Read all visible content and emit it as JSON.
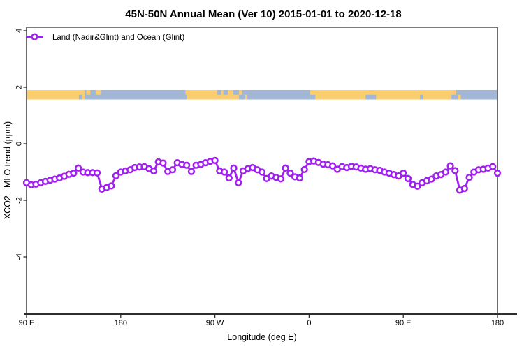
{
  "colors": {
    "line": "#A020F0",
    "marker_fill": "#ffffff",
    "land": "#FACD6E",
    "ocean": "#A2B7D6",
    "frame": "#2e2e2e",
    "background": "#ffffff"
  },
  "chart_data": {
    "type": "line",
    "title": "45N-50N Annual Mean (Ver 10)   2015-01-01 to 2020-12-18",
    "xlabel": "Longitude (deg E)",
    "ylabel": "XCO2 - MLO trend (ppm)",
    "grid": false,
    "legend_position": "top-left",
    "xlim": [
      90,
      540
    ],
    "ylim": [
      -6.0,
      4.15
    ],
    "x_tick_lons": [
      90,
      180,
      270,
      360,
      450,
      540
    ],
    "x_tick_labels": [
      "90 E",
      "180",
      "90 W",
      "0",
      "90 E",
      "180"
    ],
    "y_ticks": [
      4,
      2,
      0,
      -2,
      -4
    ],
    "y_tick_labels": [
      "4",
      "2",
      "0",
      "-2",
      "-4"
    ],
    "x_start": 90,
    "x_step": 4.5,
    "series": [
      {
        "name": "Land (Nadir&Glint) and Ocean (Glint)",
        "marker": "open-circle",
        "values": [
          -1.38,
          -1.45,
          -1.43,
          -1.38,
          -1.33,
          -1.29,
          -1.25,
          -1.21,
          -1.15,
          -1.08,
          -1.04,
          -0.86,
          -1.0,
          -1.02,
          -1.02,
          -1.03,
          -1.6,
          -1.55,
          -1.49,
          -1.13,
          -1.0,
          -0.96,
          -0.92,
          -0.84,
          -0.82,
          -0.81,
          -0.88,
          -0.96,
          -0.64,
          -0.68,
          -0.98,
          -0.92,
          -0.67,
          -0.73,
          -0.76,
          -0.98,
          -0.76,
          -0.73,
          -0.67,
          -0.62,
          -0.59,
          -0.96,
          -1.0,
          -1.21,
          -0.86,
          -1.38,
          -0.96,
          -0.88,
          -0.84,
          -0.92,
          -1.0,
          -1.23,
          -1.14,
          -1.19,
          -1.24,
          -0.86,
          -1.04,
          -1.17,
          -1.21,
          -0.91,
          -0.63,
          -0.61,
          -0.66,
          -0.72,
          -0.74,
          -0.78,
          -0.9,
          -0.81,
          -0.84,
          -0.8,
          -0.82,
          -0.86,
          -0.9,
          -0.88,
          -0.92,
          -0.94,
          -1.0,
          -1.04,
          -1.09,
          -1.14,
          -1.04,
          -1.23,
          -1.44,
          -1.5,
          -1.38,
          -1.31,
          -1.25,
          -1.14,
          -1.09,
          -1.0,
          -0.78,
          -0.95,
          -1.64,
          -1.58,
          -1.19,
          -1.0,
          -0.92,
          -0.9,
          -0.86,
          -0.81,
          -1.04
        ]
      }
    ]
  },
  "map_strip": {
    "description": "land/ocean strip for 45N-50N latitude band",
    "value_span": [
      1.57,
      1.9
    ],
    "bands": [
      {
        "from": 90,
        "to": 145.5,
        "kind": "land"
      },
      {
        "from": 145.5,
        "to": 242,
        "kind": "ocean"
      },
      {
        "from": 242,
        "to": 301,
        "kind": "land"
      },
      {
        "from": 301,
        "to": 361,
        "kind": "ocean"
      },
      {
        "from": 361,
        "to": 496,
        "kind": "land"
      },
      {
        "from": 496,
        "to": 540,
        "kind": "ocean"
      }
    ],
    "patches": [
      {
        "from": 140,
        "to": 143,
        "part": "bottom",
        "kind": "ocean"
      },
      {
        "from": 147,
        "to": 151,
        "part": "top",
        "kind": "land"
      },
      {
        "from": 156,
        "to": 161,
        "part": "top",
        "kind": "land"
      },
      {
        "from": 241,
        "to": 243.5,
        "part": "bottom",
        "kind": "ocean"
      },
      {
        "from": 272,
        "to": 276,
        "part": "top",
        "kind": "ocean"
      },
      {
        "from": 278,
        "to": 282.5,
        "part": "top",
        "kind": "ocean"
      },
      {
        "from": 287,
        "to": 293,
        "part": "top",
        "kind": "ocean"
      },
      {
        "from": 293,
        "to": 299,
        "part": "bottom",
        "kind": "ocean"
      },
      {
        "from": 296,
        "to": 301,
        "part": "top",
        "kind": "ocean"
      },
      {
        "from": 361,
        "to": 366,
        "part": "bottom",
        "kind": "ocean"
      },
      {
        "from": 414,
        "to": 424,
        "part": "bottom",
        "kind": "ocean"
      },
      {
        "from": 466,
        "to": 469,
        "part": "bottom",
        "kind": "ocean"
      },
      {
        "from": 496,
        "to": 500.5,
        "part": "top",
        "kind": "land"
      },
      {
        "from": 502,
        "to": 505,
        "part": "bottom",
        "kind": "land"
      }
    ]
  }
}
